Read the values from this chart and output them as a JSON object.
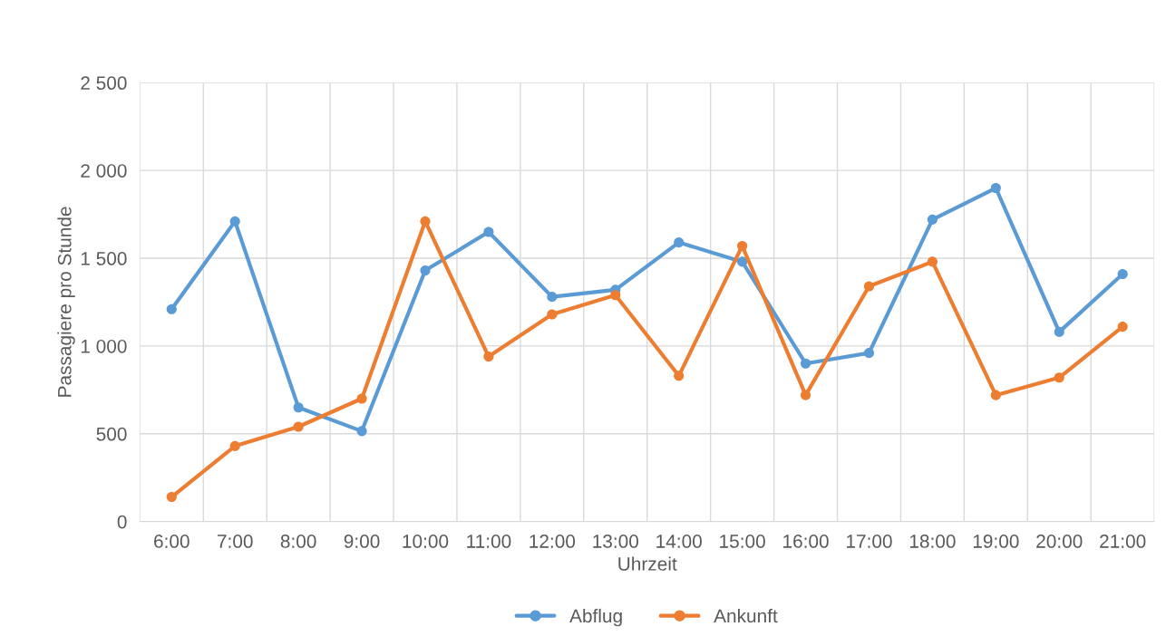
{
  "chart_data": {
    "type": "line",
    "xlabel": "Uhrzeit",
    "ylabel": "Passagiere pro Stunde",
    "categories": [
      "6:00",
      "7:00",
      "8:00",
      "9:00",
      "10:00",
      "11:00",
      "12:00",
      "13:00",
      "14:00",
      "15:00",
      "16:00",
      "17:00",
      "18:00",
      "19:00",
      "20:00",
      "21:00"
    ],
    "series": [
      {
        "name": "Abflug",
        "color": "#5b9bd5",
        "values": [
          1210,
          1710,
          650,
          515,
          1430,
          1650,
          1280,
          1320,
          1590,
          1480,
          900,
          960,
          1720,
          1900,
          1080,
          1410
        ]
      },
      {
        "name": "Ankunft",
        "color": "#ed7d31",
        "values": [
          140,
          430,
          540,
          700,
          1710,
          940,
          1180,
          1290,
          830,
          1570,
          720,
          1340,
          1480,
          720,
          820,
          1110
        ]
      }
    ],
    "ylim": [
      0,
      2500
    ],
    "yticks": [
      {
        "value": 0,
        "label": "0"
      },
      {
        "value": 500,
        "label": "500"
      },
      {
        "value": 1000,
        "label": "1 000"
      },
      {
        "value": 1500,
        "label": "1 500"
      },
      {
        "value": 2000,
        "label": "2 000"
      },
      {
        "value": 2500,
        "label": "2 500"
      }
    ],
    "grid": true,
    "legend": "bottom",
    "marker": "circle",
    "line_style": "solid"
  }
}
